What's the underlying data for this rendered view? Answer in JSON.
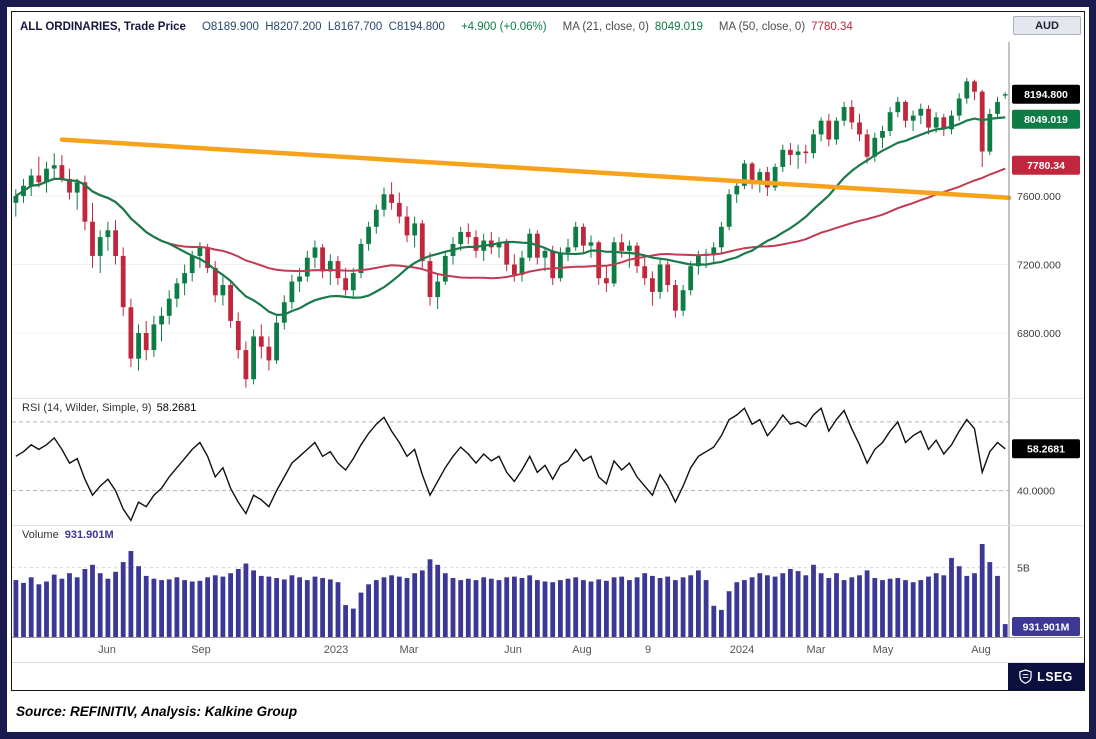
{
  "header": {
    "symbol": "ALL ORDINARIES, Trade Price",
    "ohlc": "O8189.900  H8207.200  L8167.700  C8194.800",
    "change": "+4.900 (+0.06%)",
    "ma21_label": "MA (21, close, 0)",
    "ma21_value": "8049.019",
    "ma50_label": "MA (50, close, 0)",
    "ma50_value": "7780.34",
    "currency": "AUD"
  },
  "rsi_title": {
    "label": "RSI (14, Wilder, Simple, 9)",
    "value": "58.2681"
  },
  "volume_title": {
    "label": "Volume",
    "value": "931.901M"
  },
  "axis": {
    "price_badges": {
      "last": "8194.800",
      "ma21": "8049.019",
      "ma50": "7780.34"
    },
    "price_gridlines": [
      "7600.000",
      "7200.000",
      "6800.000"
    ],
    "rsi_badge": "58.2681",
    "rsi_gridline_label": "40.0000",
    "volume_gridline_label": "5B",
    "volume_badge": "931.901M"
  },
  "footer": {
    "source": "Source: REFINITIV, Analysis: Kalkine Group",
    "brand": "LSEG"
  },
  "colors": {
    "up": "#0e7d45",
    "down": "#c0273d",
    "ma21": "#1a7a4a",
    "ma50": "#c23b53",
    "trendline": "#f7a21b",
    "rsi_line": "#111111",
    "volume": "#3d3896",
    "badge_last": "#000000",
    "title": "#16163f",
    "values": "#27496d",
    "brand_bg": "#0b0f3d"
  },
  "chart_data": {
    "type": "candlestick",
    "title": "ALL ORDINARIES, Trade Price",
    "currency": "AUD",
    "legend": [
      "Trade Price",
      "MA (21, close, 0)",
      "MA (50, close, 0)",
      "RSI (14, Wilder, Simple, 9)",
      "Volume"
    ],
    "x_labels": [
      {
        "text": "Jun",
        "f": 0.095
      },
      {
        "text": "Sep",
        "f": 0.19
      },
      {
        "text": "2023",
        "f": 0.325
      },
      {
        "text": "Mar",
        "f": 0.398
      },
      {
        "text": "Jun",
        "f": 0.503
      },
      {
        "text": "Aug",
        "f": 0.572
      },
      {
        "text": "9",
        "f": 0.638
      },
      {
        "text": "2024",
        "f": 0.732
      },
      {
        "text": "Mar",
        "f": 0.806
      },
      {
        "text": "May",
        "f": 0.874
      },
      {
        "text": "Aug",
        "f": 0.972
      }
    ],
    "price": {
      "ylim": [
        6420,
        8500
      ],
      "gridlines": [
        7600,
        7200,
        6800
      ],
      "last_open": 8189.9,
      "last_high": 8207.2,
      "last_low": 8167.7,
      "last_close": 8194.8,
      "change": 4.9,
      "change_pct": 0.06,
      "ma21_window": 21,
      "ma21_last": 8049.019,
      "ma50_window": 50,
      "ma50_last": 7780.34,
      "trendline": {
        "f1": 0.05,
        "v1": 7930,
        "f2": 1.0,
        "v2": 7590
      },
      "candles": [
        [
          7560,
          7640,
          7480,
          7600
        ],
        [
          7600,
          7700,
          7560,
          7660
        ],
        [
          7660,
          7760,
          7600,
          7720
        ],
        [
          7720,
          7830,
          7650,
          7680
        ],
        [
          7680,
          7800,
          7620,
          7760
        ],
        [
          7760,
          7850,
          7700,
          7780
        ],
        [
          7780,
          7840,
          7680,
          7700
        ],
        [
          7700,
          7760,
          7580,
          7620
        ],
        [
          7620,
          7700,
          7520,
          7680
        ],
        [
          7680,
          7720,
          7400,
          7450
        ],
        [
          7450,
          7560,
          7180,
          7250
        ],
        [
          7250,
          7400,
          7150,
          7360
        ],
        [
          7360,
          7450,
          7280,
          7400
        ],
        [
          7400,
          7460,
          7200,
          7250
        ],
        [
          7250,
          7300,
          6900,
          6950
        ],
        [
          6950,
          7000,
          6600,
          6650
        ],
        [
          6650,
          6850,
          6580,
          6800
        ],
        [
          6800,
          6870,
          6640,
          6700
        ],
        [
          6700,
          6900,
          6660,
          6850
        ],
        [
          6850,
          6950,
          6750,
          6900
        ],
        [
          6900,
          7050,
          6850,
          7000
        ],
        [
          7000,
          7120,
          6950,
          7090
        ],
        [
          7090,
          7200,
          7020,
          7150
        ],
        [
          7150,
          7280,
          7100,
          7250
        ],
        [
          7250,
          7330,
          7180,
          7300
        ],
        [
          7300,
          7320,
          7150,
          7180
        ],
        [
          7180,
          7220,
          6980,
          7020
        ],
        [
          7020,
          7130,
          6960,
          7080
        ],
        [
          7080,
          7100,
          6830,
          6870
        ],
        [
          6870,
          6920,
          6650,
          6700
        ],
        [
          6700,
          6750,
          6480,
          6530
        ],
        [
          6530,
          6820,
          6500,
          6780
        ],
        [
          6780,
          6850,
          6650,
          6720
        ],
        [
          6720,
          6780,
          6580,
          6640
        ],
        [
          6640,
          6900,
          6620,
          6860
        ],
        [
          6860,
          7020,
          6820,
          6980
        ],
        [
          6980,
          7140,
          6940,
          7100
        ],
        [
          7100,
          7180,
          7040,
          7130
        ],
        [
          7130,
          7280,
          7100,
          7240
        ],
        [
          7240,
          7340,
          7180,
          7300
        ],
        [
          7300,
          7320,
          7120,
          7160
        ],
        [
          7160,
          7260,
          7080,
          7220
        ],
        [
          7220,
          7250,
          7080,
          7120
        ],
        [
          7120,
          7180,
          7020,
          7050
        ],
        [
          7050,
          7180,
          7000,
          7150
        ],
        [
          7150,
          7350,
          7120,
          7320
        ],
        [
          7320,
          7450,
          7280,
          7420
        ],
        [
          7420,
          7550,
          7380,
          7520
        ],
        [
          7520,
          7650,
          7480,
          7610
        ],
        [
          7610,
          7680,
          7520,
          7560
        ],
        [
          7560,
          7620,
          7440,
          7480
        ],
        [
          7480,
          7540,
          7330,
          7370
        ],
        [
          7370,
          7480,
          7300,
          7440
        ],
        [
          7440,
          7460,
          7180,
          7220
        ],
        [
          7220,
          7270,
          6960,
          7010
        ],
        [
          7010,
          7140,
          6940,
          7100
        ],
        [
          7100,
          7280,
          7080,
          7250
        ],
        [
          7250,
          7360,
          7200,
          7320
        ],
        [
          7320,
          7420,
          7280,
          7390
        ],
        [
          7390,
          7440,
          7320,
          7360
        ],
        [
          7360,
          7400,
          7240,
          7280
        ],
        [
          7280,
          7380,
          7220,
          7340
        ],
        [
          7340,
          7390,
          7260,
          7300
        ],
        [
          7300,
          7360,
          7240,
          7330
        ],
        [
          7330,
          7350,
          7160,
          7200
        ],
        [
          7200,
          7260,
          7100,
          7140
        ],
        [
          7140,
          7280,
          7100,
          7240
        ],
        [
          7240,
          7410,
          7220,
          7380
        ],
        [
          7380,
          7400,
          7200,
          7240
        ],
        [
          7240,
          7300,
          7160,
          7280
        ],
        [
          7280,
          7310,
          7080,
          7120
        ],
        [
          7120,
          7300,
          7100,
          7270
        ],
        [
          7270,
          7350,
          7220,
          7300
        ],
        [
          7300,
          7450,
          7280,
          7420
        ],
        [
          7420,
          7440,
          7270,
          7310
        ],
        [
          7310,
          7370,
          7240,
          7330
        ],
        [
          7330,
          7340,
          7080,
          7120
        ],
        [
          7120,
          7190,
          7040,
          7090
        ],
        [
          7090,
          7360,
          7070,
          7330
        ],
        [
          7330,
          7380,
          7240,
          7280
        ],
        [
          7280,
          7340,
          7180,
          7310
        ],
        [
          7310,
          7330,
          7150,
          7190
        ],
        [
          7190,
          7240,
          7080,
          7120
        ],
        [
          7120,
          7160,
          6960,
          7040
        ],
        [
          7040,
          7230,
          7000,
          7200
        ],
        [
          7200,
          7220,
          7040,
          7080
        ],
        [
          7080,
          7110,
          6890,
          6930
        ],
        [
          6930,
          7080,
          6900,
          7050
        ],
        [
          7050,
          7220,
          7020,
          7190
        ],
        [
          7190,
          7280,
          7140,
          7250
        ],
        [
          7250,
          7290,
          7180,
          7260
        ],
        [
          7260,
          7330,
          7200,
          7300
        ],
        [
          7300,
          7450,
          7260,
          7420
        ],
        [
          7420,
          7640,
          7400,
          7610
        ],
        [
          7610,
          7690,
          7560,
          7660
        ],
        [
          7660,
          7810,
          7640,
          7790
        ],
        [
          7790,
          7800,
          7640,
          7690
        ],
        [
          7690,
          7760,
          7620,
          7740
        ],
        [
          7740,
          7770,
          7600,
          7650
        ],
        [
          7650,
          7790,
          7630,
          7770
        ],
        [
          7770,
          7900,
          7740,
          7870
        ],
        [
          7870,
          7910,
          7780,
          7840
        ],
        [
          7840,
          7900,
          7760,
          7860
        ],
        [
          7860,
          7900,
          7790,
          7850
        ],
        [
          7850,
          7990,
          7820,
          7960
        ],
        [
          7960,
          8060,
          7920,
          8040
        ],
        [
          8040,
          8080,
          7890,
          7930
        ],
        [
          7930,
          8060,
          7900,
          8040
        ],
        [
          8040,
          8150,
          8010,
          8120
        ],
        [
          8120,
          8160,
          7990,
          8030
        ],
        [
          8030,
          8080,
          7920,
          7960
        ],
        [
          7960,
          7990,
          7790,
          7830
        ],
        [
          7830,
          7970,
          7800,
          7940
        ],
        [
          7940,
          8010,
          7880,
          7980
        ],
        [
          7980,
          8120,
          7950,
          8090
        ],
        [
          8090,
          8180,
          8060,
          8150
        ],
        [
          8150,
          8160,
          8000,
          8040
        ],
        [
          8040,
          8100,
          7980,
          8070
        ],
        [
          8070,
          8140,
          8020,
          8110
        ],
        [
          8110,
          8130,
          7960,
          8000
        ],
        [
          8000,
          8090,
          7970,
          8060
        ],
        [
          8060,
          8080,
          7950,
          7990
        ],
        [
          7990,
          8100,
          7960,
          8070
        ],
        [
          8070,
          8200,
          8040,
          8170
        ],
        [
          8170,
          8290,
          8140,
          8270
        ],
        [
          8270,
          8280,
          8160,
          8210
        ],
        [
          8210,
          8220,
          7770,
          7860
        ],
        [
          7860,
          8110,
          7840,
          8080
        ],
        [
          8080,
          8180,
          8050,
          8150
        ],
        [
          8189.9,
          8207.2,
          8167.7,
          8194.8
        ]
      ]
    },
    "rsi": {
      "ylim": [
        25,
        80
      ],
      "period": 14,
      "levels": [
        70,
        40
      ],
      "last": 58.2681,
      "values": [
        55,
        57,
        60,
        58,
        60,
        63,
        58,
        52,
        54,
        45,
        38,
        42,
        45,
        40,
        32,
        27,
        35,
        33,
        38,
        41,
        46,
        50,
        54,
        58,
        61,
        55,
        46,
        50,
        41,
        35,
        30,
        38,
        36,
        33,
        40,
        46,
        52,
        55,
        58,
        61,
        55,
        57,
        52,
        49,
        54,
        60,
        65,
        69,
        72,
        66,
        61,
        55,
        58,
        47,
        38,
        44,
        50,
        55,
        59,
        56,
        52,
        56,
        53,
        55,
        48,
        44,
        49,
        55,
        48,
        51,
        45,
        51,
        53,
        58,
        53,
        55,
        46,
        43,
        53,
        49,
        52,
        46,
        42,
        38,
        47,
        42,
        35,
        42,
        50,
        55,
        57,
        59,
        64,
        71,
        73,
        76,
        69,
        71,
        64,
        68,
        73,
        69,
        70,
        68,
        73,
        76,
        66,
        71,
        75,
        67,
        60,
        52,
        58,
        61,
        66,
        70,
        61,
        64,
        66,
        58,
        62,
        56,
        60,
        66,
        71,
        67,
        48,
        57,
        61,
        58.27
      ]
    },
    "volume": {
      "ylim_millions": [
        0,
        8000
      ],
      "gridline_millions": 5000,
      "last_millions": 931.901,
      "values_millions": [
        4100,
        3900,
        4300,
        3800,
        4000,
        4500,
        4200,
        4600,
        4300,
        4900,
        5200,
        4600,
        4200,
        4700,
        5400,
        6200,
        5100,
        4400,
        4200,
        4100,
        4150,
        4300,
        4100,
        4000,
        4050,
        4300,
        4450,
        4350,
        4600,
        4900,
        5300,
        4800,
        4400,
        4350,
        4250,
        4150,
        4450,
        4300,
        4100,
        4350,
        4250,
        4150,
        3950,
        2300,
        2050,
        3200,
        3800,
        4100,
        4300,
        4450,
        4350,
        4250,
        4600,
        4800,
        5600,
        5200,
        4600,
        4250,
        4100,
        4200,
        4100,
        4300,
        4200,
        4100,
        4300,
        4350,
        4250,
        4450,
        4100,
        4000,
        3950,
        4100,
        4200,
        4300,
        4100,
        4000,
        4150,
        4050,
        4300,
        4350,
        4100,
        4300,
        4600,
        4400,
        4250,
        4350,
        4100,
        4300,
        4450,
        4800,
        4100,
        2250,
        1950,
        3300,
        3950,
        4100,
        4300,
        4600,
        4450,
        4350,
        4600,
        4900,
        4750,
        4450,
        5200,
        4600,
        4250,
        4600,
        4100,
        4300,
        4450,
        4800,
        4250,
        4100,
        4200,
        4250,
        4100,
        3950,
        4100,
        4350,
        4600,
        4450,
        5700,
        5100,
        4400,
        4600,
        6700,
        5400,
        4400,
        932
      ]
    }
  }
}
